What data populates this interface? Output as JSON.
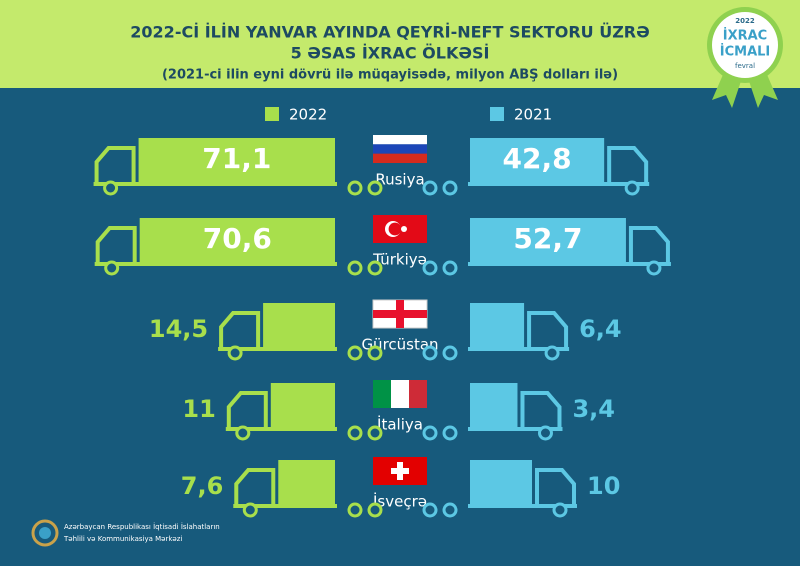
{
  "chart_data": {
    "type": "truck-bar",
    "title": [
      "2022-Cİ İLİN YANVAR AYINDA QEYRİ-NEFT SEKTORU ÜZRƏ",
      "5 ƏSAS İXRAC ÖLKƏSİ"
    ],
    "subtitle": "(2021-ci ilin eyni dövrü ilə müqayisədə, milyon ABŞ dolları ilə)",
    "categories": [
      "Rusiya",
      "Türkiyə",
      "Gürcüstan",
      "İtaliya",
      "İsveçrə"
    ],
    "series": [
      {
        "name": "2022",
        "color": "#a8df4c",
        "values": [
          71.1,
          70.6,
          14.5,
          11,
          7.6
        ],
        "value_labels": [
          "71,1",
          "70,6",
          "14,5",
          "11",
          "7,6"
        ]
      },
      {
        "name": "2021",
        "color": "#5cc8e4",
        "values": [
          42.8,
          52.7,
          6.4,
          3.4,
          10
        ],
        "value_labels": [
          "42,8",
          "52,7",
          "6,4",
          "3,4",
          "10"
        ]
      }
    ]
  },
  "badge": {
    "year": "2022",
    "line1": "İXRAC",
    "line2": "İCMALI",
    "month": "fevral"
  },
  "footer": [
    "Azərbaycan Respublikası İqtisadi İslahatların",
    "Təhlili və Kommunikasiya Mərkəzi"
  ]
}
